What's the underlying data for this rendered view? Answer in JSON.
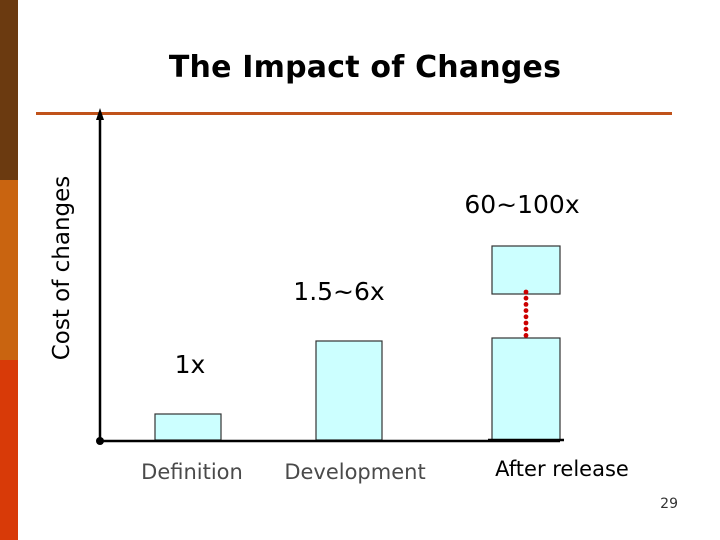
{
  "slide": {
    "title": "The Impact of Changes",
    "page_number": "29"
  },
  "chart_data": {
    "type": "bar",
    "title": "The Impact of Changes",
    "xlabel": "",
    "ylabel": "Cost of changes",
    "categories": [
      "Definition",
      "Development",
      "After release"
    ],
    "values": [
      1,
      6,
      100
    ],
    "value_labels": [
      "1x",
      "1.5~6x",
      "60~100x"
    ],
    "range_low": [
      1,
      1.5,
      60
    ],
    "range_high": [
      1,
      6,
      100
    ],
    "axis_scale": "non-linear (broken axis on last bar)",
    "grid": false,
    "legend": "none"
  },
  "colors": {
    "bar_fill": "#ccffff",
    "bar_stroke": "#333333",
    "accent_rule": "#c0521a",
    "dots": "#cc0000",
    "category_text_muted": "#4a4a4a",
    "band_dark": "#6b3a10",
    "band_mid": "#c96410",
    "band_bright": "#d83a08"
  }
}
